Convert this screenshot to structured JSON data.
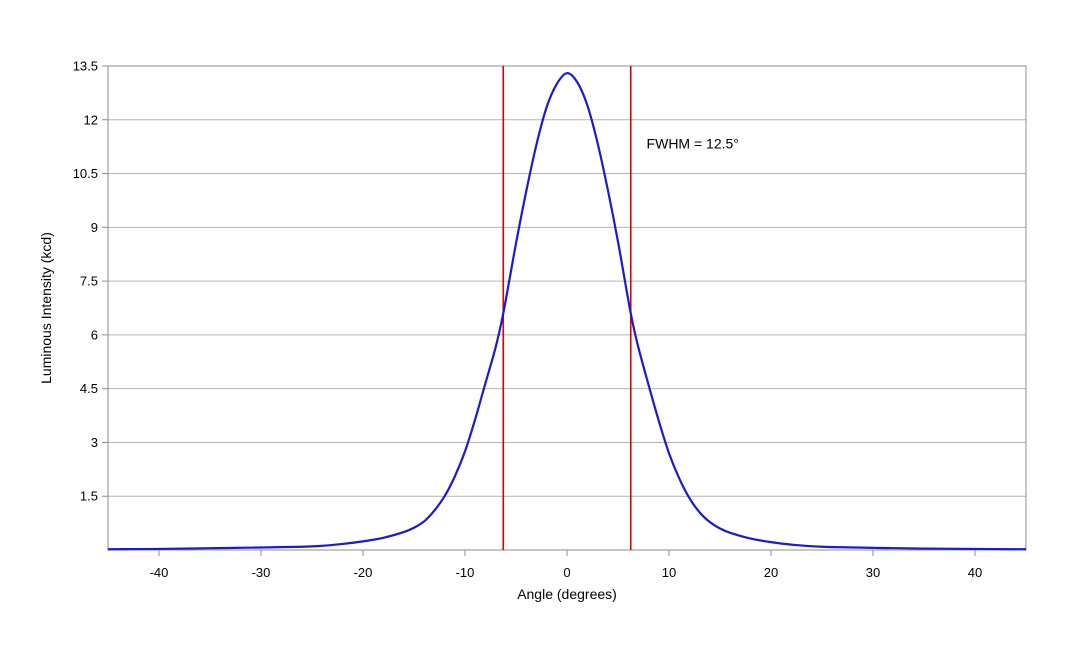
{
  "chart_data": {
    "type": "line",
    "xlabel": "Angle (degrees)",
    "ylabel": "Luminous Intensity (kcd)",
    "xlim": [
      -45,
      45
    ],
    "ylim": [
      0,
      13.5
    ],
    "x_ticks": [
      -40,
      -30,
      -20,
      -10,
      0,
      10,
      20,
      30,
      40
    ],
    "y_ticks": [
      1.5,
      3,
      4.5,
      6,
      7.5,
      9,
      10.5,
      12,
      13.5
    ],
    "y_tick_labels": [
      "1.5",
      "3",
      "4.5",
      "6",
      "7.5",
      "9",
      "10.5",
      "12",
      "13.5"
    ],
    "grid": "horizontal",
    "series": [
      {
        "color": "#1a1ad0",
        "x": [
          -45,
          -40,
          -35,
          -30,
          -25,
          -22,
          -20,
          -18,
          -16,
          -15,
          -14,
          -13,
          -12,
          -11,
          -10,
          -9,
          -8,
          -7,
          -6.25,
          -5,
          -4,
          -3,
          -2,
          -1,
          0,
          1,
          2,
          3,
          4,
          5,
          6.25,
          7,
          8,
          9,
          10,
          11,
          12,
          13,
          14,
          15,
          16,
          18,
          20,
          22,
          25,
          30,
          35,
          40,
          45
        ],
        "y": [
          0.02,
          0.03,
          0.05,
          0.07,
          0.1,
          0.17,
          0.24,
          0.34,
          0.5,
          0.62,
          0.8,
          1.1,
          1.5,
          2.05,
          2.75,
          3.65,
          4.65,
          5.65,
          6.6,
          8.55,
          10.0,
          11.3,
          12.35,
          13.0,
          13.3,
          13.05,
          12.4,
          11.35,
          10.05,
          8.6,
          6.6,
          5.65,
          4.6,
          3.6,
          2.7,
          2.0,
          1.45,
          1.05,
          0.78,
          0.6,
          0.48,
          0.32,
          0.22,
          0.15,
          0.09,
          0.06,
          0.04,
          0.03,
          0.02
        ]
      }
    ],
    "vlines": [
      {
        "x": -6.25,
        "color": "#e00000"
      },
      {
        "x": 6.25,
        "color": "#e00000"
      }
    ],
    "annotation": {
      "text": "FWHM = 12.5°",
      "x": 7.8,
      "y": 11.2
    }
  }
}
